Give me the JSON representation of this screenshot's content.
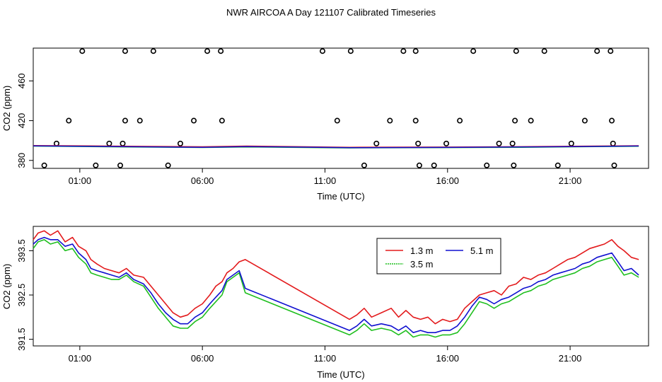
{
  "figure_title": "NWR AIRCOA A  Day 121107  Calibrated Timeseries",
  "colors": {
    "series_13": "#e31a1c",
    "series_35": "#1fbf1f",
    "series_51": "#1010d0",
    "frame": "#000000"
  },
  "chart_data": [
    {
      "type": "scatter+line",
      "title": "",
      "xlabel": "Time (UTC)",
      "ylabel": "CO2 (ppm)",
      "xlim": [
        -0.9,
        24.2
      ],
      "ylim": [
        372,
        493
      ],
      "x_ticks": [
        1,
        6,
        11,
        16,
        21
      ],
      "x_tick_labels": [
        "01:00",
        "06:00",
        "11:00",
        "16:00",
        "21:00"
      ],
      "y_ticks": [
        380,
        420,
        460
      ],
      "y_tick_labels": [
        "380",
        "420",
        "460"
      ],
      "cal_points": [
        {
          "x": -0.45,
          "y": 375
        },
        {
          "x": 0.05,
          "y": 397
        },
        {
          "x": 0.55,
          "y": 420
        },
        {
          "x": 1.1,
          "y": 490
        },
        {
          "x": 1.65,
          "y": 375
        },
        {
          "x": 2.2,
          "y": 397
        },
        {
          "x": 2.75,
          "y": 397
        },
        {
          "x": 2.65,
          "y": 375
        },
        {
          "x": 2.85,
          "y": 420
        },
        {
          "x": 2.85,
          "y": 490
        },
        {
          "x": 3.45,
          "y": 420
        },
        {
          "x": 4.0,
          "y": 490
        },
        {
          "x": 4.6,
          "y": 375
        },
        {
          "x": 5.1,
          "y": 397
        },
        {
          "x": 5.65,
          "y": 420
        },
        {
          "x": 6.2,
          "y": 490
        },
        {
          "x": 6.75,
          "y": 490
        },
        {
          "x": 6.8,
          "y": 420
        },
        {
          "x": 10.9,
          "y": 490
        },
        {
          "x": 11.5,
          "y": 420
        },
        {
          "x": 12.05,
          "y": 490
        },
        {
          "x": 12.6,
          "y": 375
        },
        {
          "x": 13.1,
          "y": 397
        },
        {
          "x": 13.65,
          "y": 420
        },
        {
          "x": 14.2,
          "y": 490
        },
        {
          "x": 14.7,
          "y": 490
        },
        {
          "x": 14.7,
          "y": 420
        },
        {
          "x": 14.8,
          "y": 397
        },
        {
          "x": 14.85,
          "y": 375
        },
        {
          "x": 15.45,
          "y": 375
        },
        {
          "x": 15.95,
          "y": 397
        },
        {
          "x": 16.5,
          "y": 420
        },
        {
          "x": 17.05,
          "y": 490
        },
        {
          "x": 17.6,
          "y": 375
        },
        {
          "x": 18.1,
          "y": 397
        },
        {
          "x": 18.65,
          "y": 397
        },
        {
          "x": 18.7,
          "y": 375
        },
        {
          "x": 18.75,
          "y": 420
        },
        {
          "x": 18.8,
          "y": 490
        },
        {
          "x": 19.4,
          "y": 420
        },
        {
          "x": 19.95,
          "y": 490
        },
        {
          "x": 20.5,
          "y": 375
        },
        {
          "x": 21.05,
          "y": 397
        },
        {
          "x": 21.6,
          "y": 420
        },
        {
          "x": 22.1,
          "y": 490
        },
        {
          "x": 22.65,
          "y": 490
        },
        {
          "x": 22.7,
          "y": 420
        },
        {
          "x": 22.75,
          "y": 397
        },
        {
          "x": 22.8,
          "y": 375
        }
      ],
      "baseline_series": [
        {
          "name": "1.3 m",
          "x": [
            -0.9,
            3,
            6,
            7.8,
            12,
            16,
            19,
            22,
            23.8
          ],
          "y": [
            395,
            394.3,
            393.7,
            394.4,
            393.2,
            393.4,
            393.8,
            394.4,
            394.8
          ]
        },
        {
          "name": "3.5 m",
          "x": [
            -0.9,
            3,
            6,
            7.8,
            12,
            16,
            19,
            22,
            23.8
          ],
          "y": [
            394.4,
            393.5,
            393.0,
            393.6,
            392.6,
            392.9,
            393.2,
            393.9,
            394.2
          ]
        },
        {
          "name": "5.1 m",
          "x": [
            -0.9,
            3,
            6,
            7.8,
            12,
            16,
            19,
            22,
            23.8
          ],
          "y": [
            394.6,
            393.8,
            393.2,
            393.9,
            392.8,
            393.1,
            393.5,
            394.1,
            394.5
          ]
        }
      ]
    },
    {
      "type": "line",
      "title": "",
      "xlabel": "Time (UTC)",
      "ylabel": "CO2 (ppm)",
      "xlim": [
        -0.9,
        24.2
      ],
      "ylim": [
        391.35,
        394.05
      ],
      "x_ticks": [
        1,
        6,
        11,
        16,
        21
      ],
      "x_tick_labels": [
        "01:00",
        "06:00",
        "11:00",
        "16:00",
        "21:00"
      ],
      "y_ticks": [
        391.5,
        392.5,
        393.5
      ],
      "y_tick_labels": [
        "391.5",
        "392.5",
        "393.5"
      ],
      "legend": {
        "placement": "top-center",
        "entries": [
          "1.3 m",
          "3.5 m",
          "5.1 m"
        ]
      },
      "series": [
        {
          "name": "1.3 m",
          "color": "#e31a1c",
          "x": [
            -0.9,
            -0.7,
            -0.45,
            -0.2,
            0.1,
            0.4,
            0.7,
            0.95,
            1.25,
            1.45,
            1.7,
            2.0,
            2.3,
            2.6,
            2.9,
            3.2,
            3.6,
            3.9,
            4.2,
            4.5,
            4.8,
            5.1,
            5.4,
            5.7,
            6.0,
            6.3,
            6.55,
            6.8,
            7.0,
            7.25,
            7.5,
            7.75,
            12.0,
            12.3,
            12.6,
            12.9,
            13.3,
            13.7,
            14.0,
            14.3,
            14.6,
            14.9,
            15.2,
            15.5,
            15.8,
            16.1,
            16.4,
            16.7,
            17.0,
            17.3,
            17.6,
            17.9,
            18.2,
            18.5,
            18.8,
            19.1,
            19.4,
            19.7,
            20.0,
            20.3,
            20.6,
            20.9,
            21.2,
            21.5,
            21.8,
            22.1,
            22.4,
            22.7,
            22.95,
            23.2,
            23.5,
            23.8
          ],
          "y": [
            393.75,
            393.9,
            393.95,
            393.85,
            393.95,
            393.7,
            393.8,
            393.6,
            393.5,
            393.3,
            393.2,
            393.1,
            393.05,
            393.0,
            393.1,
            392.95,
            392.9,
            392.7,
            392.5,
            392.3,
            392.1,
            392.0,
            392.05,
            392.2,
            392.3,
            392.5,
            392.7,
            392.8,
            393.0,
            393.1,
            393.25,
            393.3,
            391.95,
            392.05,
            392.2,
            392.0,
            392.1,
            392.2,
            392.0,
            392.15,
            392.0,
            391.95,
            392.0,
            391.85,
            391.95,
            391.9,
            391.95,
            392.2,
            392.35,
            392.5,
            392.55,
            392.6,
            392.5,
            392.7,
            392.75,
            392.9,
            392.85,
            392.95,
            393.0,
            393.1,
            393.2,
            393.3,
            393.35,
            393.45,
            393.55,
            393.6,
            393.65,
            393.75,
            393.6,
            393.5,
            393.35,
            393.3
          ]
        },
        {
          "name": "3.5 m",
          "color": "#1fbf1f",
          "x": [
            -0.9,
            -0.7,
            -0.45,
            -0.2,
            0.1,
            0.4,
            0.7,
            0.95,
            1.25,
            1.45,
            1.7,
            2.0,
            2.3,
            2.6,
            2.9,
            3.2,
            3.6,
            3.9,
            4.2,
            4.5,
            4.8,
            5.1,
            5.4,
            5.7,
            6.0,
            6.3,
            6.55,
            6.8,
            7.0,
            7.25,
            7.5,
            7.75,
            12.0,
            12.3,
            12.6,
            12.9,
            13.3,
            13.7,
            14.0,
            14.3,
            14.6,
            14.9,
            15.2,
            15.5,
            15.8,
            16.1,
            16.4,
            16.7,
            17.0,
            17.3,
            17.6,
            17.9,
            18.2,
            18.5,
            18.8,
            19.1,
            19.4,
            19.7,
            20.0,
            20.3,
            20.6,
            20.9,
            21.2,
            21.5,
            21.8,
            22.1,
            22.4,
            22.7,
            22.95,
            23.2,
            23.5,
            23.8
          ],
          "y": [
            393.55,
            393.7,
            393.75,
            393.65,
            393.7,
            393.5,
            393.55,
            393.35,
            393.2,
            393.0,
            392.95,
            392.9,
            392.85,
            392.85,
            392.95,
            392.8,
            392.7,
            392.45,
            392.2,
            392.0,
            391.8,
            391.75,
            391.75,
            391.9,
            392.0,
            392.2,
            392.35,
            392.5,
            392.8,
            392.9,
            393.0,
            392.55,
            391.6,
            391.7,
            391.85,
            391.7,
            391.75,
            391.7,
            391.6,
            391.7,
            391.55,
            391.6,
            391.6,
            391.55,
            391.6,
            391.6,
            391.65,
            391.85,
            392.1,
            392.35,
            392.3,
            392.2,
            392.3,
            392.35,
            392.45,
            392.55,
            392.6,
            392.7,
            392.75,
            392.85,
            392.9,
            392.95,
            393.0,
            393.1,
            393.15,
            393.25,
            393.3,
            393.35,
            393.15,
            392.95,
            393.0,
            392.9
          ]
        },
        {
          "name": "5.1 m",
          "color": "#1010d0",
          "x": [
            -0.9,
            -0.7,
            -0.45,
            -0.2,
            0.1,
            0.4,
            0.7,
            0.95,
            1.25,
            1.45,
            1.7,
            2.0,
            2.3,
            2.6,
            2.9,
            3.2,
            3.6,
            3.9,
            4.2,
            4.5,
            4.8,
            5.1,
            5.4,
            5.7,
            6.0,
            6.3,
            6.55,
            6.8,
            7.0,
            7.25,
            7.5,
            7.75,
            12.0,
            12.3,
            12.6,
            12.9,
            13.3,
            13.7,
            14.0,
            14.3,
            14.6,
            14.9,
            15.2,
            15.5,
            15.8,
            16.1,
            16.4,
            16.7,
            17.0,
            17.3,
            17.6,
            17.9,
            18.2,
            18.5,
            18.8,
            19.1,
            19.4,
            19.7,
            20.0,
            20.3,
            20.6,
            20.9,
            21.2,
            21.5,
            21.8,
            22.1,
            22.4,
            22.7,
            22.95,
            23.2,
            23.5,
            23.8
          ],
          "y": [
            393.65,
            393.75,
            393.8,
            393.75,
            393.75,
            393.6,
            393.65,
            393.45,
            393.3,
            393.1,
            393.05,
            393.0,
            392.95,
            392.9,
            393.0,
            392.85,
            392.75,
            392.55,
            392.3,
            392.1,
            391.95,
            391.85,
            391.85,
            392.0,
            392.1,
            392.3,
            392.45,
            392.6,
            392.85,
            392.95,
            393.05,
            392.65,
            391.7,
            391.8,
            391.95,
            391.8,
            391.85,
            391.8,
            391.7,
            391.8,
            391.65,
            391.7,
            391.65,
            391.65,
            391.7,
            391.7,
            391.8,
            392.0,
            392.25,
            392.45,
            392.4,
            392.3,
            392.4,
            392.45,
            392.55,
            392.65,
            392.7,
            392.8,
            392.85,
            392.95,
            393.0,
            393.05,
            393.1,
            393.2,
            393.25,
            393.35,
            393.4,
            393.45,
            393.25,
            393.05,
            393.1,
            392.95
          ]
        }
      ]
    }
  ]
}
